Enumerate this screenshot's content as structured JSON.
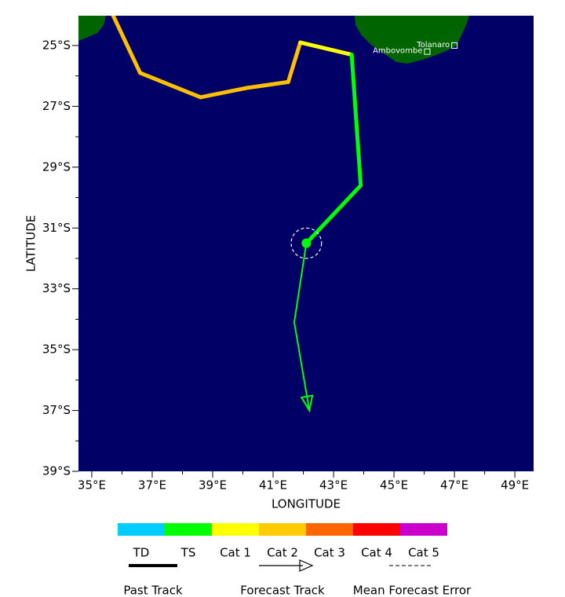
{
  "chart_data": {
    "type": "track",
    "xlabel": "LONGITUDE",
    "ylabel": "LATITUDE",
    "xlim": [
      34.56,
      49.62
    ],
    "ylim": [
      -39,
      -24.02
    ],
    "xticks": [
      {
        "value": 35,
        "label": "35°E"
      },
      {
        "value": 37,
        "label": "37°E"
      },
      {
        "value": 39,
        "label": "39°E"
      },
      {
        "value": 41,
        "label": "41°E"
      },
      {
        "value": 43,
        "label": "43°E"
      },
      {
        "value": 45,
        "label": "45°E"
      },
      {
        "value": 47,
        "label": "47°E"
      },
      {
        "value": 49,
        "label": "49°E"
      }
    ],
    "yticks": [
      {
        "value": -25,
        "label": "25°S"
      },
      {
        "value": -27,
        "label": "27°S"
      },
      {
        "value": -29,
        "label": "29°S"
      },
      {
        "value": -31,
        "label": "31°S"
      },
      {
        "value": -33,
        "label": "33°S"
      },
      {
        "value": -35,
        "label": "35°S"
      },
      {
        "value": -37,
        "label": "37°S"
      },
      {
        "value": -39,
        "label": "39°S"
      }
    ],
    "ocean_color": "#000066",
    "land_color": "#006400",
    "past_track": {
      "lon": [
        35.7,
        36.6,
        38.6,
        40.1,
        41.5,
        41.9,
        43.6,
        43.9,
        42.1
      ],
      "lat": [
        -24.0,
        -25.9,
        -26.7,
        -26.4,
        -26.2,
        -24.9,
        -25.3,
        -29.6,
        -31.5
      ],
      "colors": [
        "#ffc000",
        "#ffc000",
        "#ffc000",
        "#ffc000",
        "#ffc000",
        "#ffff00",
        "#00ff00",
        "#00ff00",
        "#00ff00"
      ]
    },
    "forecast_track": {
      "lon": [
        42.1,
        41.7,
        42.2
      ],
      "lat": [
        -31.5,
        -34.1,
        -37.0
      ],
      "color": "#00ff00"
    },
    "current_position": {
      "lon": 42.1,
      "lat": -31.5,
      "error_radius": 0.5,
      "color": "#00ff00"
    },
    "places": [
      {
        "name": "Tolanaro",
        "lon": 47.0,
        "lat": -25.0
      },
      {
        "name": "Ambovombe",
        "lon": 46.1,
        "lat": -25.2
      }
    ],
    "legend": {
      "categories": [
        "TD",
        "TS",
        "Cat 1",
        "Cat 2",
        "Cat 3",
        "Cat 4",
        "Cat 5"
      ],
      "colors": [
        "#00ccff",
        "#00ff00",
        "#ffff00",
        "#ffcc00",
        "#ff6600",
        "#ff0000",
        "#cc00cc"
      ],
      "items": [
        "Past Track",
        "Forecast Track",
        "Mean Forecast Error"
      ]
    }
  }
}
